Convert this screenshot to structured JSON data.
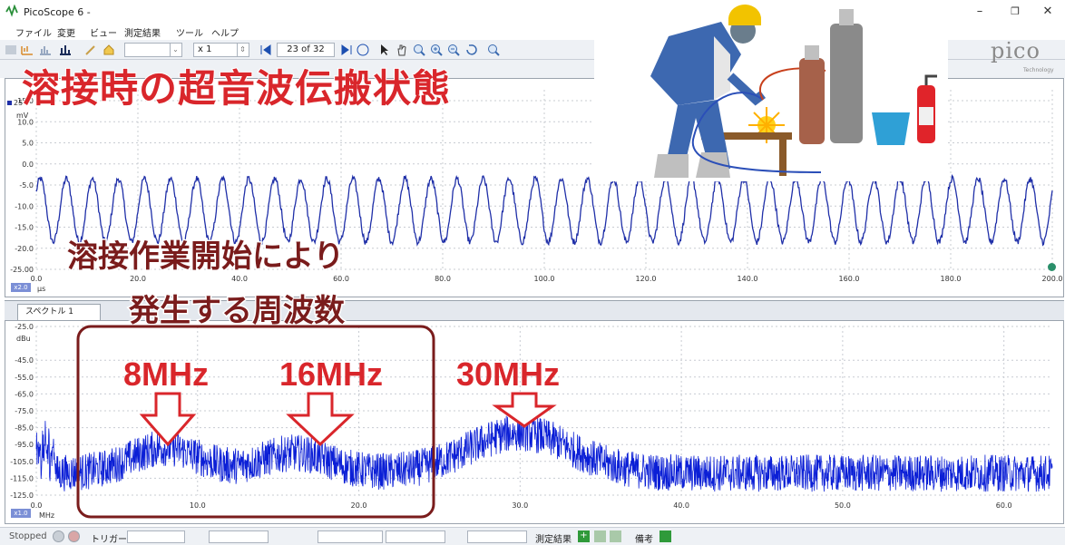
{
  "window": {
    "title": "PicoScope 6 -",
    "controls": {
      "minimize": "–",
      "restore": "❐",
      "close": "✕"
    }
  },
  "menu": {
    "items": [
      "ファイル",
      "変更",
      "ビュー",
      "測定結果",
      "ツール",
      "ヘルプ"
    ]
  },
  "toolbar": {
    "zoom_value": "x 1",
    "buffer_position": "23 of 32"
  },
  "brand": {
    "logo_text": "pico",
    "logo_sub": "Technology"
  },
  "overlay": {
    "main_title": "溶接時の超音波伝搬状態",
    "sub_title_1": "溶接作業開始により",
    "sub_title_2": "発生する周波数",
    "freq_labels": [
      "8MHz",
      "16MHz",
      "30MHz"
    ],
    "accent_color": "#d9262b",
    "box_color": "#7a1c1c"
  },
  "scope": {
    "channel_label": "25",
    "y_unit": "mV",
    "y_ticks": [
      "15.0",
      "10.0",
      "5.0",
      "0.0",
      "-5.0",
      "-10.0",
      "-15.0",
      "-20.0",
      "-25.00"
    ],
    "x_ticks": [
      "0.0",
      "20.0",
      "40.0",
      "60.0",
      "80.0",
      "100.0",
      "120.0",
      "140.0",
      "160.0",
      "180.0",
      "200.0"
    ],
    "x_unit": "µs",
    "zoom_badge": "x2.0",
    "trace_color": "#1f2fa8"
  },
  "spectrum": {
    "tab_label": "スペクトル 1",
    "y_unit": "dBu",
    "y_ticks": [
      "-25.0",
      "-45.0",
      "-55.0",
      "-65.0",
      "-75.0",
      "-85.0",
      "-95.0",
      "-105.0",
      "-115.0",
      "-125.0"
    ],
    "x_ticks": [
      "0.0",
      "10.0",
      "20.0",
      "30.0",
      "40.0",
      "50.0",
      "60.0"
    ],
    "x_unit": "MHz",
    "zoom_badge": "x1.0",
    "trace_color": "#0b1fd6"
  },
  "status": {
    "state": "Stopped",
    "trigger_label": "トリガー",
    "measurements_label": "測定結果",
    "notes_label": "備考"
  },
  "chart_data": [
    {
      "type": "line",
      "x_range": [
        0,
        200
      ],
      "y_range": [
        -25,
        25
      ],
      "xlabel": "µs",
      "ylabel": "mV",
      "series": [
        {
          "frequency_cycles": 39,
          "center": -11,
          "amplitude": 7.5
        }
      ],
      "grid": true
    },
    {
      "type": "line",
      "x_range": [
        0,
        63
      ],
      "y_range": [
        -125,
        -25
      ],
      "xlabel": "MHz",
      "ylabel": "dBu",
      "series": [
        {
          "noise_floor": -112,
          "peaks": [
            [
              8,
              -97
            ],
            [
              16,
              -100
            ],
            [
              30,
              -88
            ]
          ]
        }
      ],
      "grid": true
    }
  ]
}
